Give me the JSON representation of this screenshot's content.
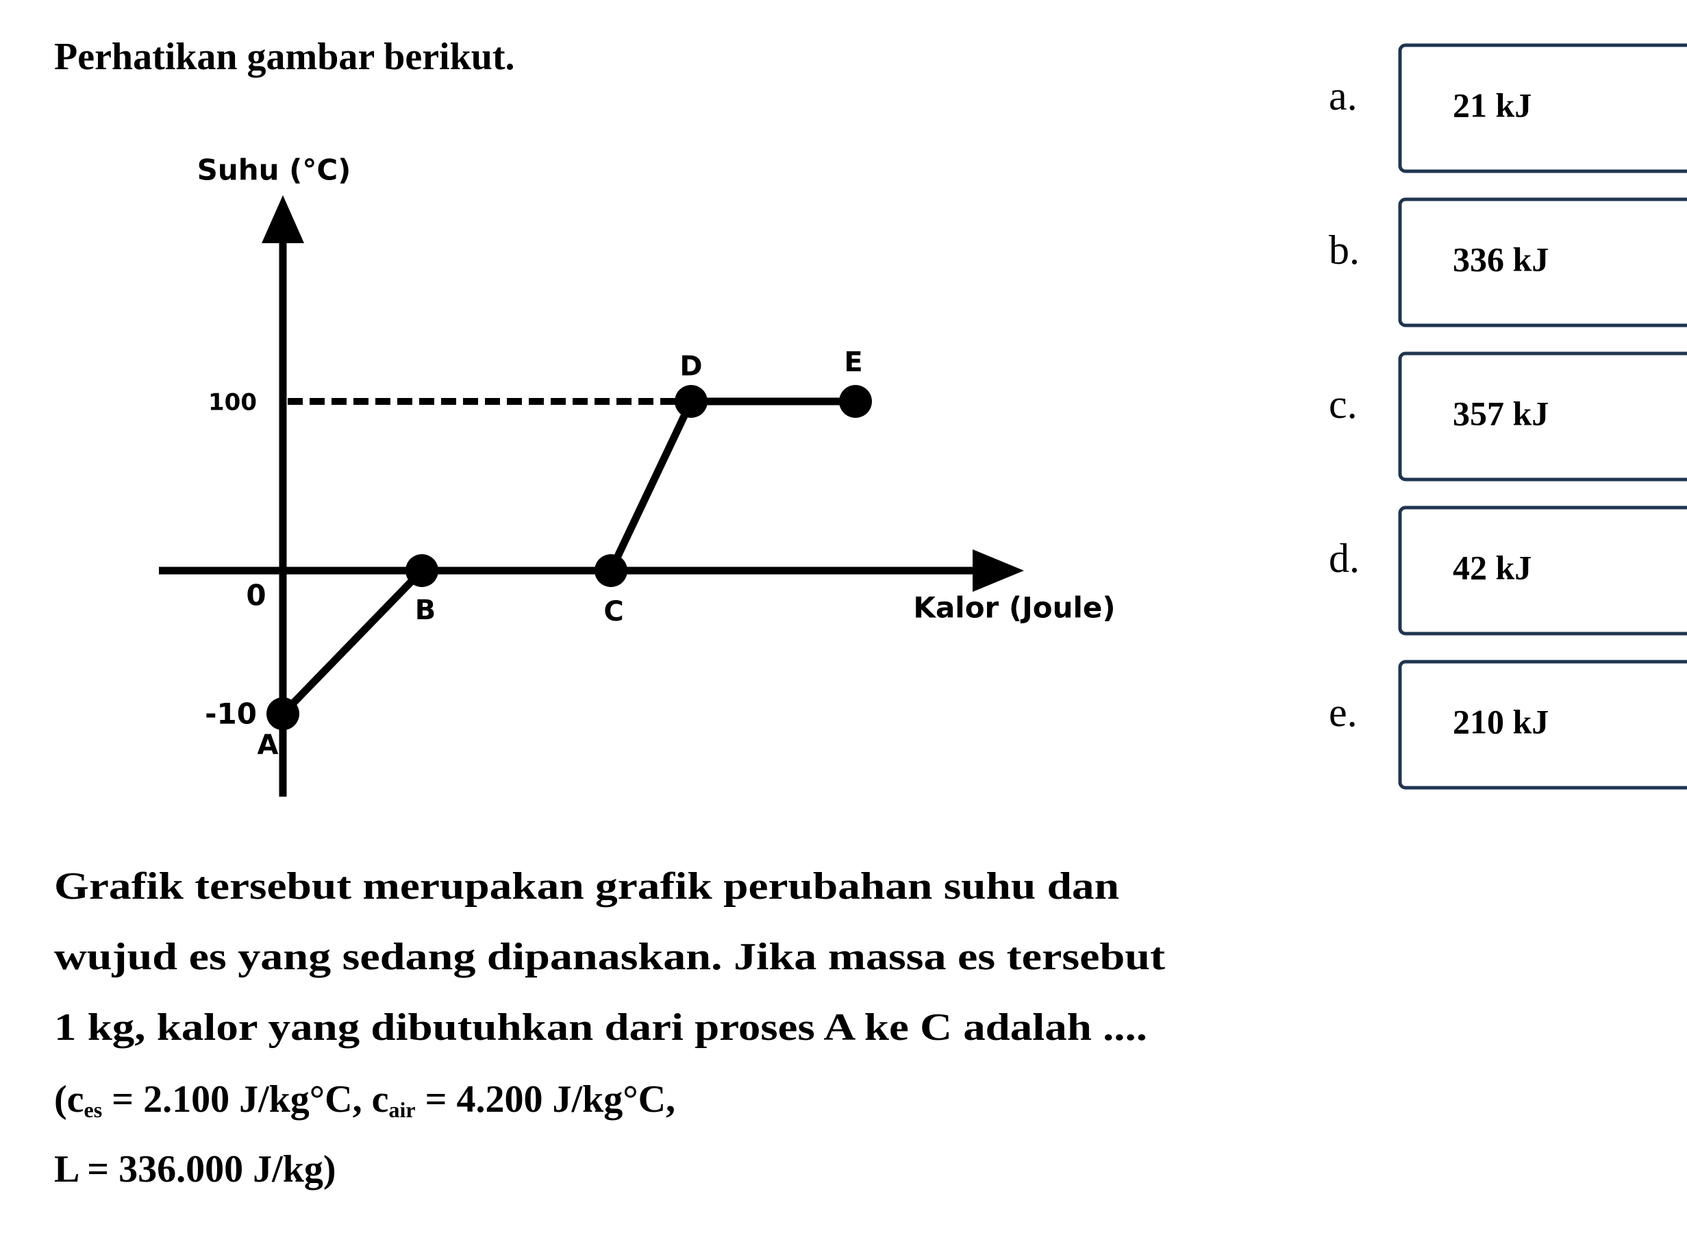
{
  "question": {
    "title": "Perhatikan gambar berikut.",
    "graph": {
      "y_axis_label": "Suhu (°C)",
      "x_axis_label": "Kalor (Joule)",
      "y_tick_labels": [
        "100",
        "0",
        "-10"
      ],
      "points": [
        "A",
        "B",
        "C",
        "D",
        "E"
      ]
    },
    "text_lines": [
      "Grafik tersebut merupakan grafik perubahan suhu dan",
      "wujud es yang sedang dipanaskan. Jika massa es tersebut",
      "1 kg, kalor yang dibutuhkan dari proses A ke C adalah ...."
    ],
    "formula_lines": [
      [
        "(c",
        "es",
        " = 2.100 J/kg°C, c",
        "air",
        " = 4.200 J/kg°C,"
      ],
      [
        "L = 336.000 J/kg)"
      ]
    ],
    "options": [
      {
        "letter": "a.",
        "text": "21 kJ"
      },
      {
        "letter": "b.",
        "text": "336 kJ"
      },
      {
        "letter": "c.",
        "text": "357 kJ"
      },
      {
        "letter": "d.",
        "text": "42 kJ"
      },
      {
        "letter": "e.",
        "text": "210 kJ"
      }
    ]
  }
}
